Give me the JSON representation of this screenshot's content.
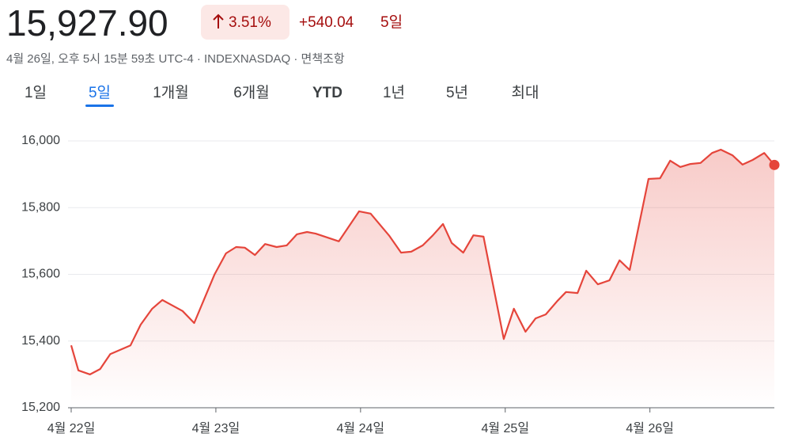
{
  "header": {
    "price": "15,927.90",
    "change_percent": "3.51%",
    "change_value": "+540.04",
    "period": "5일",
    "subtitle": "4월 26일, 오후 5시 15분 59초 UTC-4 · INDEXNASDAQ · 면책조항"
  },
  "tabs": [
    "1일",
    "5일",
    "1개월",
    "6개월",
    "YTD",
    "1년",
    "5년",
    "최대"
  ],
  "selected_tab": 1,
  "chart_data": {
    "type": "line",
    "color": "#e5453b",
    "grid": true,
    "x": [
      0,
      0.05,
      0.13,
      0.2,
      0.27,
      0.41,
      0.48,
      0.56,
      0.63,
      0.77,
      0.85,
      0.99,
      1.07,
      1.14,
      1.2,
      1.27,
      1.34,
      1.42,
      1.49,
      1.56,
      1.63,
      1.69,
      1.85,
      1.99,
      2.07,
      2.2,
      2.28,
      2.35,
      2.43,
      2.5,
      2.57,
      2.63,
      2.71,
      2.78,
      2.85,
      2.99,
      3.06,
      3.14,
      3.21,
      3.28,
      3.36,
      3.42,
      3.5,
      3.56,
      3.64,
      3.72,
      3.79,
      3.86,
      3.99,
      4.07,
      4.14,
      4.21,
      4.28,
      4.35,
      4.43,
      4.49,
      4.57,
      4.64,
      4.71,
      4.79,
      4.86
    ],
    "values": [
      15387,
      15312,
      15300,
      15316,
      15361,
      15387,
      15449,
      15497,
      15523,
      15490,
      15454,
      15599,
      15663,
      15682,
      15680,
      15658,
      15691,
      15682,
      15687,
      15720,
      15727,
      15722,
      15699,
      15789,
      15782,
      15715,
      15665,
      15668,
      15687,
      15717,
      15751,
      15694,
      15665,
      15717,
      15713,
      15406,
      15497,
      15428,
      15468,
      15480,
      15520,
      15547,
      15544,
      15611,
      15570,
      15582,
      15642,
      15613,
      15886,
      15888,
      15941,
      15922,
      15931,
      15934,
      15964,
      15974,
      15957,
      15929,
      15943,
      15964,
      15928
    ],
    "xlim": [
      0,
      4.86
    ],
    "xticks": [
      {
        "value": 0,
        "label": "4월 22일"
      },
      {
        "value": 1,
        "label": "4월 23일"
      },
      {
        "value": 2,
        "label": "4월 24일"
      },
      {
        "value": 3,
        "label": "4월 25일"
      },
      {
        "value": 4,
        "label": "4월 26일"
      }
    ],
    "ylim": [
      15200,
      16000
    ],
    "yticks": [
      {
        "value": 15200,
        "label": "15,200"
      },
      {
        "value": 15400,
        "label": "15,400"
      },
      {
        "value": 15600,
        "label": "15,600"
      },
      {
        "value": 15800,
        "label": "15,800"
      },
      {
        "value": 16000,
        "label": "16,000"
      }
    ]
  }
}
